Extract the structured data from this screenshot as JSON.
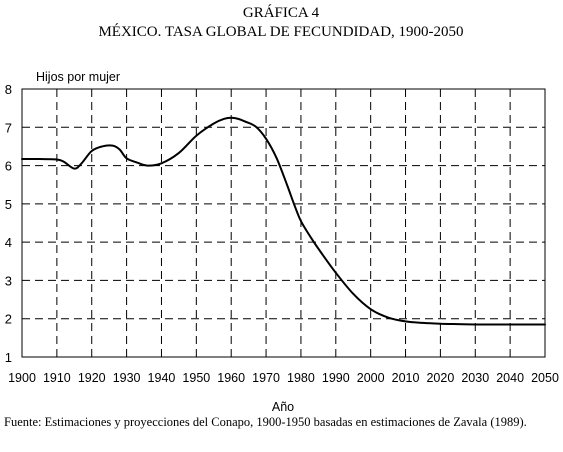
{
  "chart_data": {
    "type": "line",
    "title": "GRÁFICA 4",
    "subtitle": "MÉXICO. TASA GLOBAL DE FECUNDIDAD, 1900-2050",
    "xlabel": "Año",
    "ylabel": "Hijos por mujer",
    "xlim": [
      1900,
      2050
    ],
    "ylim": [
      1,
      8
    ],
    "x_ticks": [
      1900,
      1910,
      1920,
      1930,
      1940,
      1950,
      1960,
      1970,
      1980,
      1990,
      2000,
      2010,
      2020,
      2030,
      2040,
      2050
    ],
    "y_ticks": [
      1,
      2,
      3,
      4,
      5,
      6,
      7,
      8
    ],
    "grid": "dashed",
    "legend": "none",
    "series": [
      {
        "color": "#000000",
        "x": [
          1900,
          1905,
          1910,
          1912,
          1915,
          1917,
          1920,
          1923,
          1926,
          1928,
          1930,
          1933,
          1936,
          1940,
          1945,
          1950,
          1955,
          1958,
          1960,
          1962,
          1964,
          1967,
          1970,
          1973,
          1976,
          1978,
          1980,
          1983,
          1986,
          1990,
          1995,
          2000,
          2005,
          2010,
          2015,
          2020,
          2025,
          2030,
          2040,
          2050
        ],
        "y": [
          6.17,
          6.17,
          6.16,
          6.1,
          5.92,
          6.05,
          6.38,
          6.5,
          6.52,
          6.42,
          6.19,
          6.08,
          6.0,
          6.06,
          6.33,
          6.78,
          7.1,
          7.22,
          7.25,
          7.22,
          7.15,
          7.02,
          6.7,
          6.2,
          5.5,
          5.0,
          4.55,
          4.1,
          3.7,
          3.2,
          2.65,
          2.25,
          2.03,
          1.93,
          1.89,
          1.87,
          1.86,
          1.85,
          1.85,
          1.85
        ]
      }
    ]
  },
  "footer": {
    "source": "Fuente: Estimaciones y proyecciones del Conapo, 1900-1950 basadas en estimaciones de Zavala (1989)."
  }
}
